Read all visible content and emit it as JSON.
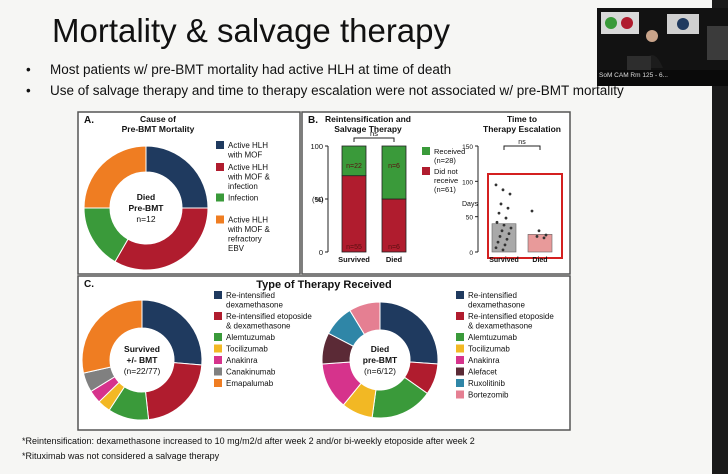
{
  "slide": {
    "title": "Mortality & salvage therapy",
    "bullets": [
      "Most patients w/ pre-BMT mortality had active HLH at time of death",
      "Use of salvage therapy and time to therapy escalation were not associated w/ pre-BMT mortality"
    ],
    "footnotes": [
      "*Reintensification: dexamethasone increased to 10 mg/m2/d after week 2 and/or bi-weekly etoposide after week 2",
      "*Rituximab was not considered a salvage therapy"
    ]
  },
  "video": {
    "caption": "SoM CAM Rm 125 - 6..."
  },
  "colors": {
    "navy": "#1f3a5f",
    "crimson": "#b01c2e",
    "green": "#3a9a3a",
    "orange": "#ef7d22",
    "yellow": "#f2b824",
    "magenta": "#d6338c",
    "gray": "#808080",
    "brown": "#5b2a36",
    "teal": "#2f86a7",
    "pink": "#e57f92",
    "survived_bar": "#a9a9a9",
    "died_bar": "#e89a9a",
    "frame_red": "#d42020"
  },
  "chart_data": [
    {
      "panel": "A.",
      "type": "pie",
      "title": "Cause of Pre-BMT Mortality",
      "center_label": [
        "Died",
        "Pre-BMT",
        "n=12"
      ],
      "slices": [
        {
          "label": "Active HLH with MOF",
          "value": 3,
          "color": "#1f3a5f"
        },
        {
          "label": "Active HLH with MOF & infection",
          "value": 4,
          "color": "#b01c2e"
        },
        {
          "label": "Infection",
          "value": 2,
          "color": "#3a9a3a"
        },
        {
          "label": "Active HLH with MOF & refractory EBV",
          "value": 3,
          "color": "#ef7d22"
        }
      ]
    },
    {
      "panel": "B.",
      "type": "bar",
      "title": "Reintensification and Salvage Therapy",
      "ylabel": "(%)",
      "ylim": [
        0,
        100
      ],
      "yticks": [
        0,
        50,
        100
      ],
      "categories": [
        "Survived",
        "Died"
      ],
      "series": [
        {
          "name": "Did not receive",
          "values": [
            72,
            50
          ],
          "counts": [
            "n=55",
            "n=6"
          ],
          "legend_count": "(n=61)",
          "color": "#b01c2e"
        },
        {
          "name": "Received",
          "values": [
            28,
            50
          ],
          "counts": [
            "n=22",
            "n=6"
          ],
          "legend_count": "(n=28)",
          "color": "#3a9a3a"
        }
      ],
      "annotation": "ns"
    },
    {
      "panel": "B2",
      "type": "scatter",
      "title": "Time to Therapy Escalation",
      "ylabel": "Days",
      "ylim": [
        0,
        150
      ],
      "yticks": [
        0,
        50,
        100,
        150
      ],
      "categories": [
        "Survived",
        "Died"
      ],
      "bar_values": [
        40,
        25
      ],
      "points": [
        {
          "group": "Survived",
          "y": [
            95,
            88,
            82,
            68,
            62,
            55,
            48,
            42,
            38,
            34,
            30,
            26,
            22,
            18,
            14,
            10,
            6,
            3
          ]
        },
        {
          "group": "Died",
          "y": [
            58,
            30,
            24,
            22,
            20
          ]
        }
      ],
      "annotation": "ns"
    },
    {
      "panel": "C.",
      "type": "pie",
      "title": "Type of Therapy Received",
      "center_label": [
        "Survived",
        "+/- BMT",
        "(n=22/77)"
      ],
      "slices": [
        {
          "label": "Re-intensified dexamethasone",
          "value": 6,
          "color": "#1f3a5f"
        },
        {
          "label": "Re-intensified etoposide & dexamethasone",
          "value": 5,
          "color": "#b01c2e"
        },
        {
          "label": "Alemtuzumab",
          "value": 2.5,
          "color": "#3a9a3a"
        },
        {
          "label": "Tocilizumab",
          "value": 0.8,
          "color": "#f2b824"
        },
        {
          "label": "Anakinra",
          "value": 0.8,
          "color": "#d6338c"
        },
        {
          "label": "Canakinumab",
          "value": 1.2,
          "color": "#808080"
        },
        {
          "label": "Emapalumab",
          "value": 6.5,
          "color": "#ef7d22"
        }
      ]
    },
    {
      "panel": "C2",
      "type": "pie",
      "center_label": [
        "Died",
        "pre-BMT",
        "(n=6/12)"
      ],
      "slices": [
        {
          "label": "Re-intensified dexamethasone",
          "value": 3,
          "color": "#1f3a5f"
        },
        {
          "label": "Re-intensified etoposide & dexamethasone",
          "value": 1,
          "color": "#b01c2e"
        },
        {
          "label": "Alemtuzumab",
          "value": 2,
          "color": "#3a9a3a"
        },
        {
          "label": "Tocilizumab",
          "value": 1,
          "color": "#f2b824"
        },
        {
          "label": "Anakinra",
          "value": 1.5,
          "color": "#d6338c"
        },
        {
          "label": "Alefacet",
          "value": 1,
          "color": "#5b2a36"
        },
        {
          "label": "Ruxolitinib",
          "value": 1,
          "color": "#2f86a7"
        },
        {
          "label": "Bortezomib",
          "value": 1,
          "color": "#e57f92"
        }
      ]
    }
  ]
}
